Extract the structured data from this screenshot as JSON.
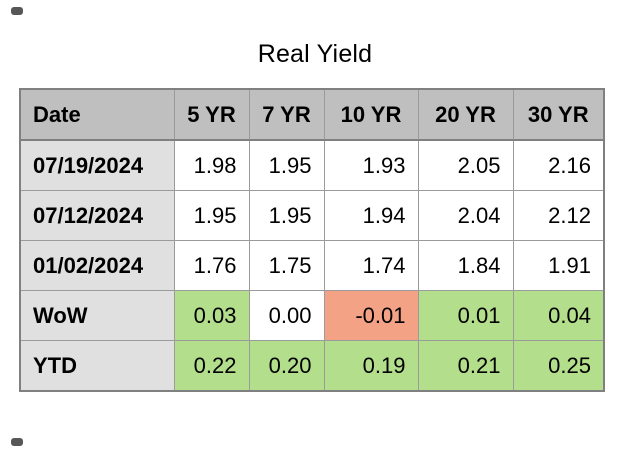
{
  "title": "Real Yield",
  "palette": {
    "header_bg": "#bfbfbf",
    "label_bg": "#e0e0e0",
    "cell_bg": "#ffffff",
    "positive_bg": "#b3de8c",
    "negative_bg": "#f4a285",
    "grid_border": "#9b9b9b",
    "outer_border": "#808080",
    "text": "#000000",
    "artifact": "#3a3a3a"
  },
  "chart_data": {
    "type": "table",
    "title": "Real Yield",
    "columns": [
      "Date",
      "5 YR",
      "7 YR",
      "10 YR",
      "20 YR",
      "30 YR"
    ],
    "rows": [
      {
        "label": "07/19/2024",
        "values": [
          "1.98",
          "1.95",
          "1.93",
          "2.05",
          "2.16"
        ],
        "highlights": [
          "none",
          "none",
          "none",
          "none",
          "none"
        ]
      },
      {
        "label": "07/12/2024",
        "values": [
          "1.95",
          "1.95",
          "1.94",
          "2.04",
          "2.12"
        ],
        "highlights": [
          "none",
          "none",
          "none",
          "none",
          "none"
        ]
      },
      {
        "label": "01/02/2024",
        "values": [
          "1.76",
          "1.75",
          "1.74",
          "1.84",
          "1.91"
        ],
        "highlights": [
          "none",
          "none",
          "none",
          "none",
          "none"
        ]
      },
      {
        "label": "WoW",
        "values": [
          "0.03",
          "0.00",
          "-0.01",
          "0.01",
          "0.04"
        ],
        "highlights": [
          "positive",
          "none",
          "negative",
          "positive",
          "positive"
        ]
      },
      {
        "label": "YTD",
        "values": [
          "0.22",
          "0.20",
          "0.19",
          "0.21",
          "0.25"
        ],
        "highlights": [
          "positive",
          "positive",
          "positive",
          "positive",
          "positive"
        ]
      }
    ]
  }
}
